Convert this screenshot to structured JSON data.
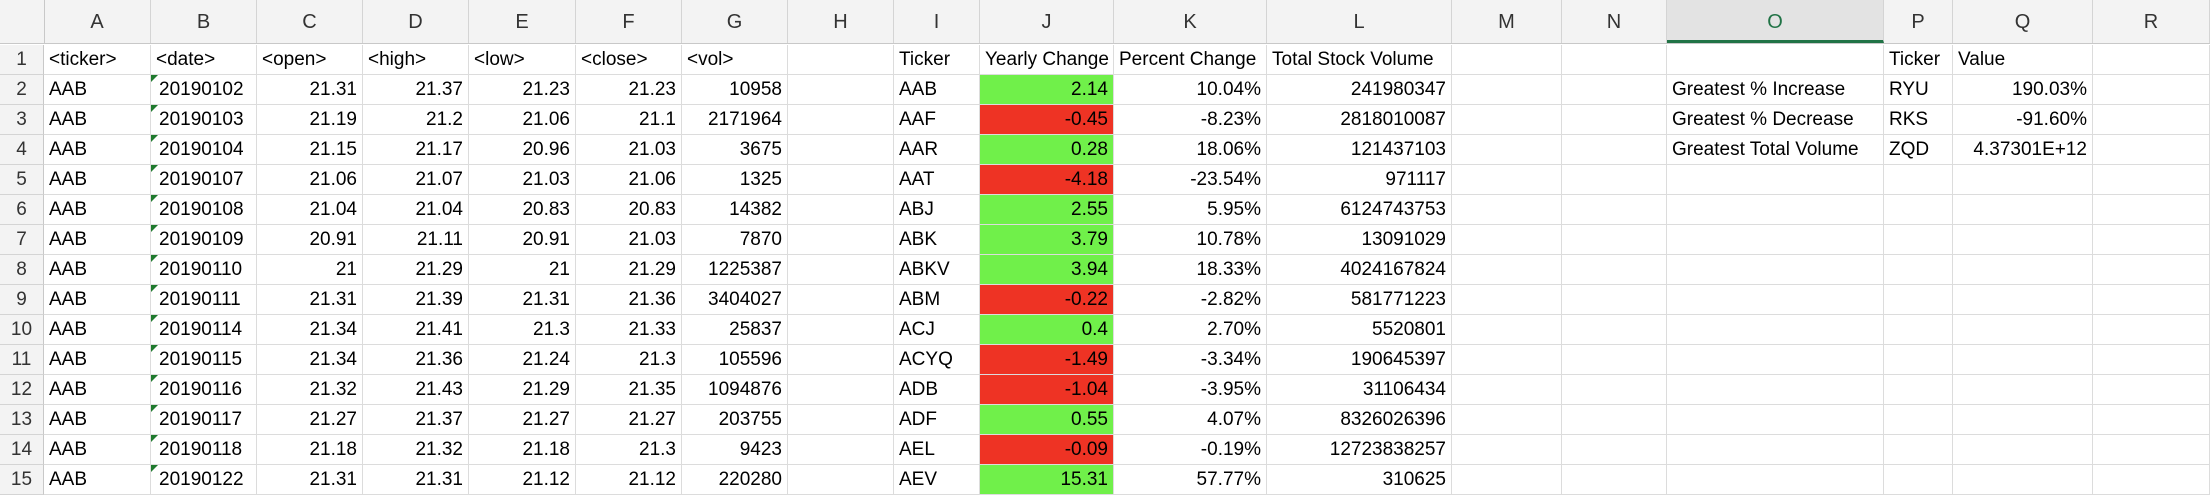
{
  "columns": [
    "A",
    "B",
    "C",
    "D",
    "E",
    "F",
    "G",
    "H",
    "I",
    "J",
    "K",
    "L",
    "M",
    "N",
    "O",
    "P",
    "Q",
    "R"
  ],
  "selected_column": "O",
  "row_numbers": [
    "1",
    "2",
    "3",
    "4",
    "5",
    "6",
    "7",
    "8",
    "9",
    "10",
    "11",
    "12",
    "13",
    "14",
    "15"
  ],
  "headers": {
    "A": "<ticker>",
    "B": "<date>",
    "C": "<open>",
    "D": "<high>",
    "E": "<low>",
    "F": "<close>",
    "G": "<vol>",
    "I": "Ticker",
    "J": "Yearly Change",
    "K": "Percent Change",
    "L": "Total Stock Volume",
    "P": "Ticker",
    "Q": "Value"
  },
  "raw_rows": [
    [
      "AAB",
      "20190102",
      "21.31",
      "21.37",
      "21.23",
      "21.23",
      "10958"
    ],
    [
      "AAB",
      "20190103",
      "21.19",
      "21.2",
      "21.06",
      "21.1",
      "2171964"
    ],
    [
      "AAB",
      "20190104",
      "21.15",
      "21.17",
      "20.96",
      "21.03",
      "3675"
    ],
    [
      "AAB",
      "20190107",
      "21.06",
      "21.07",
      "21.03",
      "21.06",
      "1325"
    ],
    [
      "AAB",
      "20190108",
      "21.04",
      "21.04",
      "20.83",
      "20.83",
      "14382"
    ],
    [
      "AAB",
      "20190109",
      "20.91",
      "21.11",
      "20.91",
      "21.03",
      "7870"
    ],
    [
      "AAB",
      "20190110",
      "21",
      "21.29",
      "21",
      "21.29",
      "1225387"
    ],
    [
      "AAB",
      "20190111",
      "21.31",
      "21.39",
      "21.31",
      "21.36",
      "3404027"
    ],
    [
      "AAB",
      "20190114",
      "21.34",
      "21.41",
      "21.3",
      "21.33",
      "25837"
    ],
    [
      "AAB",
      "20190115",
      "21.34",
      "21.36",
      "21.24",
      "21.3",
      "105596"
    ],
    [
      "AAB",
      "20190116",
      "21.32",
      "21.43",
      "21.29",
      "21.35",
      "1094876"
    ],
    [
      "AAB",
      "20190117",
      "21.27",
      "21.37",
      "21.27",
      "21.27",
      "203755"
    ],
    [
      "AAB",
      "20190118",
      "21.18",
      "21.32",
      "21.18",
      "21.3",
      "9423"
    ],
    [
      "AAB",
      "20190122",
      "21.31",
      "21.31",
      "21.12",
      "21.12",
      "220280"
    ]
  ],
  "summary_rows": [
    {
      "ticker": "AAB",
      "change": "2.14",
      "sign": "pos",
      "percent": "10.04%",
      "volume": "241980347"
    },
    {
      "ticker": "AAF",
      "change": "-0.45",
      "sign": "neg",
      "percent": "-8.23%",
      "volume": "2818010087"
    },
    {
      "ticker": "AAR",
      "change": "0.28",
      "sign": "pos",
      "percent": "18.06%",
      "volume": "121437103"
    },
    {
      "ticker": "AAT",
      "change": "-4.18",
      "sign": "neg",
      "percent": "-23.54%",
      "volume": "971117"
    },
    {
      "ticker": "ABJ",
      "change": "2.55",
      "sign": "pos",
      "percent": "5.95%",
      "volume": "6124743753"
    },
    {
      "ticker": "ABK",
      "change": "3.79",
      "sign": "pos",
      "percent": "10.78%",
      "volume": "13091029"
    },
    {
      "ticker": "ABKV",
      "change": "3.94",
      "sign": "pos",
      "percent": "18.33%",
      "volume": "4024167824"
    },
    {
      "ticker": "ABM",
      "change": "-0.22",
      "sign": "neg",
      "percent": "-2.82%",
      "volume": "581771223"
    },
    {
      "ticker": "ACJ",
      "change": "0.4",
      "sign": "pos",
      "percent": "2.70%",
      "volume": "5520801"
    },
    {
      "ticker": "ACYQ",
      "change": "-1.49",
      "sign": "neg",
      "percent": "-3.34%",
      "volume": "190645397"
    },
    {
      "ticker": "ADB",
      "change": "-1.04",
      "sign": "neg",
      "percent": "-3.95%",
      "volume": "31106434"
    },
    {
      "ticker": "ADF",
      "change": "0.55",
      "sign": "pos",
      "percent": "4.07%",
      "volume": "8326026396"
    },
    {
      "ticker": "AEL",
      "change": "-0.09",
      "sign": "neg",
      "percent": "-0.19%",
      "volume": "12723838257"
    },
    {
      "ticker": "AEV",
      "change": "15.31",
      "sign": "pos",
      "percent": "57.77%",
      "volume": "310625"
    }
  ],
  "greatest": [
    {
      "label": "Greatest % Increase",
      "ticker": "RYU",
      "value": "190.03%"
    },
    {
      "label": "Greatest % Decrease",
      "ticker": "RKS",
      "value": "-91.60%"
    },
    {
      "label": "Greatest Total Volume",
      "ticker": "ZQD",
      "value": "4.37301E+12"
    }
  ],
  "colors": {
    "positive": "#70f04a",
    "negative": "#ee3324",
    "selected_header": "#217346"
  }
}
